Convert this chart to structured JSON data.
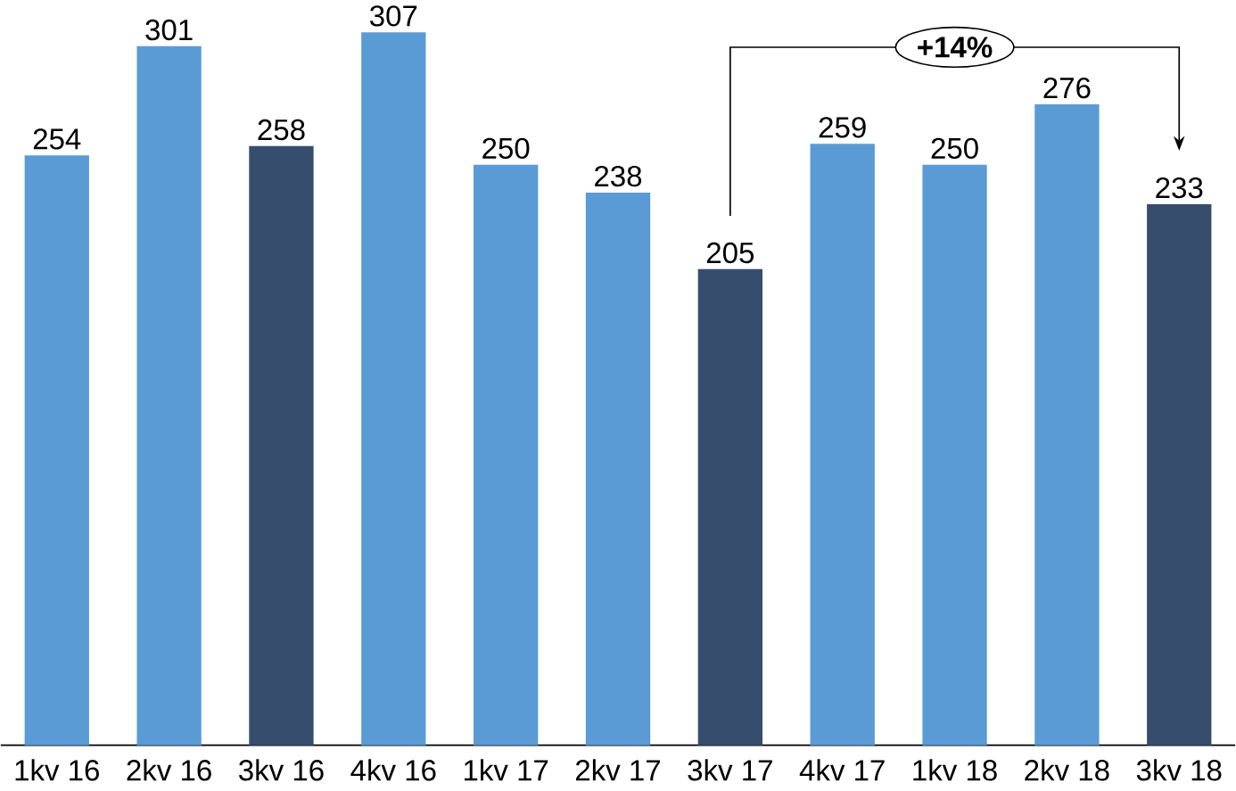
{
  "chart_data": {
    "type": "bar",
    "categories": [
      "1kv 16",
      "2kv 16",
      "3kv 16",
      "4kv 16",
      "1kv 17",
      "2kv 17",
      "3kv 17",
      "4kv 17",
      "1kv 18",
      "2kv 18",
      "3kv 18"
    ],
    "values": [
      254,
      301,
      258,
      307,
      250,
      238,
      205,
      259,
      250,
      276,
      233
    ],
    "colors": [
      "#5b9bd5",
      "#5b9bd5",
      "#374d6e",
      "#5b9bd5",
      "#5b9bd5",
      "#5b9bd5",
      "#374d6e",
      "#5b9bd5",
      "#5b9bd5",
      "#5b9bd5",
      "#374d6e"
    ],
    "data_labels": true,
    "annotations": [
      "+14%"
    ]
  }
}
